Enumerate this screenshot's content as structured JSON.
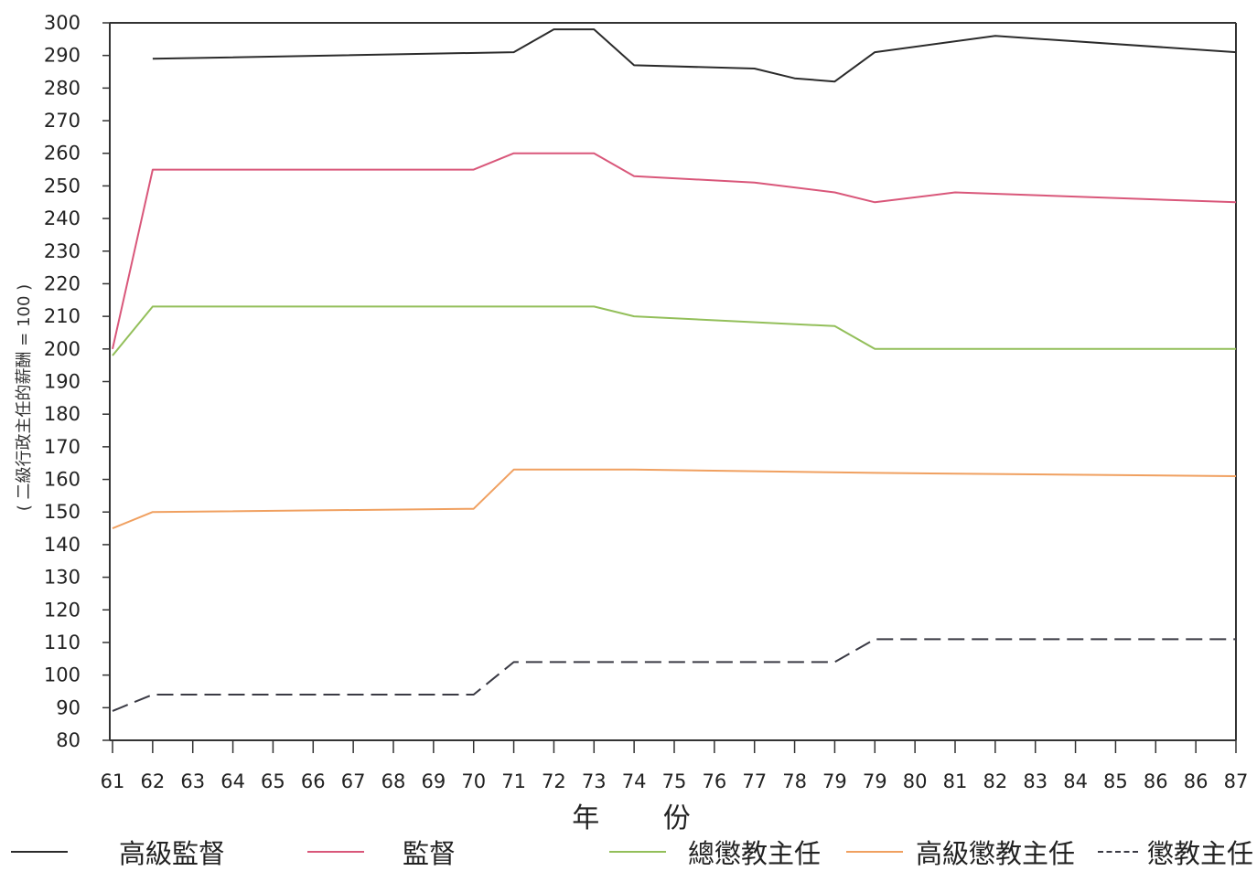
{
  "chart_data": {
    "type": "line",
    "title": "",
    "xlabel": "年 份",
    "ylabel": "( 二級行政主任的薪酬 = 100 )",
    "ylim": [
      80,
      300
    ],
    "yticks": [
      80,
      90,
      100,
      110,
      120,
      130,
      140,
      150,
      160,
      170,
      180,
      190,
      200,
      210,
      220,
      230,
      240,
      250,
      260,
      270,
      280,
      290,
      300
    ],
    "x_tick_labels": [
      "61",
      "62",
      "63",
      "64",
      "65",
      "66",
      "67",
      "68",
      "69",
      "70",
      "71",
      "72",
      "73",
      "74",
      "75",
      "76",
      "77",
      "78",
      "79",
      "79",
      "80",
      "81",
      "82",
      "83",
      "84",
      "85",
      "86",
      "86",
      "87"
    ],
    "grid": false,
    "legend_position": "bottom",
    "series": [
      {
        "name": "高級監督",
        "color": "#2b2b2b",
        "dash": "solid",
        "points": [
          [
            1,
            289
          ],
          [
            10,
            291
          ],
          [
            11,
            298
          ],
          [
            12,
            298
          ],
          [
            13,
            287
          ],
          [
            16,
            286
          ],
          [
            17,
            283
          ],
          [
            18,
            282
          ],
          [
            19,
            291
          ],
          [
            22,
            296
          ],
          [
            28,
            291
          ]
        ]
      },
      {
        "name": "監督",
        "color": "#d9577a",
        "dash": "solid",
        "points": [
          [
            0,
            200
          ],
          [
            1,
            255
          ],
          [
            9,
            255
          ],
          [
            10,
            260
          ],
          [
            12,
            260
          ],
          [
            13,
            253
          ],
          [
            16,
            251
          ],
          [
            18,
            248
          ],
          [
            19,
            245
          ],
          [
            21,
            248
          ],
          [
            28,
            245
          ]
        ]
      },
      {
        "name": "總懲教主任",
        "color": "#93bf5a",
        "dash": "solid",
        "points": [
          [
            0,
            198
          ],
          [
            1,
            213
          ],
          [
            12,
            213
          ],
          [
            13,
            210
          ],
          [
            18,
            207
          ],
          [
            19,
            200
          ],
          [
            28,
            200
          ]
        ]
      },
      {
        "name": "高級懲教主任",
        "color": "#f0a060",
        "dash": "solid",
        "points": [
          [
            0,
            145
          ],
          [
            1,
            150
          ],
          [
            9,
            151
          ],
          [
            10,
            163
          ],
          [
            13,
            163
          ],
          [
            19,
            162
          ],
          [
            28,
            161
          ]
        ]
      },
      {
        "name": "懲教主任",
        "color": "#3a3a44",
        "dash": "dashed",
        "points": [
          [
            0,
            89
          ],
          [
            1,
            94
          ],
          [
            9,
            94
          ],
          [
            10,
            104
          ],
          [
            18,
            104
          ],
          [
            19,
            111
          ],
          [
            28,
            111
          ]
        ]
      }
    ]
  }
}
